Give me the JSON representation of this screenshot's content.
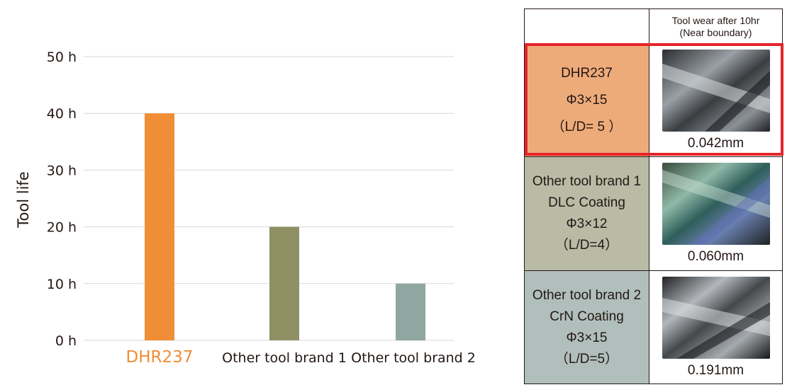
{
  "chart_data": {
    "type": "bar",
    "categories": [
      "DHR237",
      "Other tool brand 1",
      "Other tool brand 2"
    ],
    "values": [
      40,
      20,
      10
    ],
    "colors": [
      "#f08e37",
      "#8f9064",
      "#8fa6a1"
    ],
    "highlight_label_color": "#f08e37",
    "ylabel": "Tool life",
    "xlabel": "",
    "ylim": [
      0,
      50
    ],
    "yticks": [
      "0 h",
      "10 h",
      "20 h",
      "30 h",
      "40 h",
      "50 h"
    ],
    "ytick_values": [
      0,
      10,
      20,
      30,
      40,
      50
    ],
    "grid": true
  },
  "table": {
    "header": {
      "line1": "Tool wear  after 10hr",
      "line2": "(Near boundary)"
    },
    "rows": [
      {
        "lines": [
          "DHR237",
          "Φ3×15",
          "（L/D= 5 ）"
        ],
        "wear": "0.042mm",
        "bg": "#eeab7a",
        "photo_icon": "tool-wear-photo-icon"
      },
      {
        "lines": [
          "Other tool brand 1",
          "DLC Coating",
          "Φ3×12",
          "（L/D=4）"
        ],
        "wear": "0.060mm",
        "bg": "#b9bba5",
        "photo_icon": "tool-wear-photo-icon"
      },
      {
        "lines": [
          "Other tool brand 2",
          "CrN Coating",
          "Φ3×15",
          "（L/D=5）"
        ],
        "wear": "0.191mm",
        "bg": "#b1bfbc",
        "photo_icon": "tool-wear-photo-icon"
      }
    ],
    "highlight_color": "#e6242a"
  }
}
